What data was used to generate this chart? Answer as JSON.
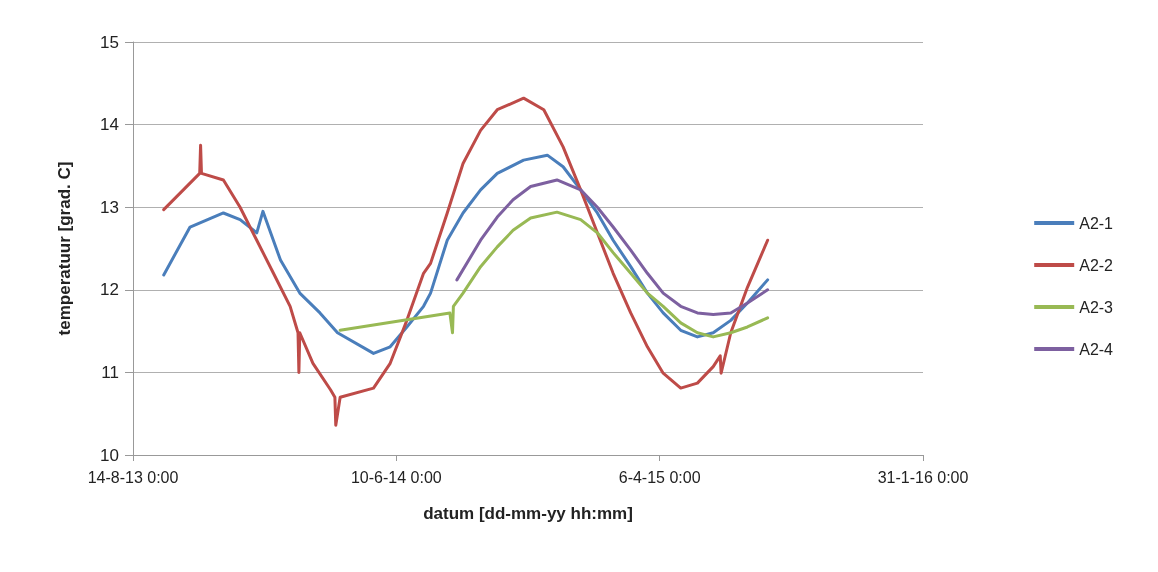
{
  "chart_data": {
    "type": "line",
    "xlabel": "datum [dd-mm-yy hh:mm]",
    "ylabel": "temperatuur [grad. C]",
    "xlim": [
      "2013-08-14",
      "2016-01-31"
    ],
    "xticks": [
      {
        "value": "2013-08-14",
        "label": "14-8-13 0:00"
      },
      {
        "value": "2014-06-10",
        "label": "10-6-14 0:00"
      },
      {
        "value": "2015-04-06",
        "label": "6-4-15 0:00"
      },
      {
        "value": "2016-01-31",
        "label": "31-1-16 0:00"
      }
    ],
    "ylim": [
      10,
      15
    ],
    "yticks": [
      10,
      11,
      12,
      13,
      14,
      15
    ],
    "grid": "y",
    "legend": "right",
    "marker": "none",
    "line_style": "solid",
    "series": [
      {
        "name": "A2-1",
        "color": "#4a7ebb",
        "x": [
          "2013-09-18",
          "2013-10-18",
          "2013-11-25",
          "2013-12-14",
          "2014-01-02",
          "2014-01-09",
          "2014-01-29",
          "2014-02-20",
          "2014-03-15",
          "2014-04-04",
          "2014-05-15",
          "2014-06-03",
          "2014-06-22",
          "2014-07-11",
          "2014-07-19",
          "2014-08-07",
          "2014-08-25",
          "2014-09-14",
          "2014-10-03",
          "2014-11-02",
          "2014-11-29",
          "2014-12-17",
          "2015-01-06",
          "2015-01-25",
          "2015-02-12",
          "2015-03-04",
          "2015-03-23",
          "2015-04-10",
          "2015-04-30",
          "2015-05-19",
          "2015-06-06",
          "2015-06-26",
          "2015-07-15",
          "2015-08-07"
        ],
        "values": [
          12.18,
          12.76,
          12.93,
          12.85,
          12.69,
          12.95,
          12.36,
          11.96,
          11.72,
          11.48,
          11.23,
          11.31,
          11.55,
          11.8,
          11.96,
          12.6,
          12.93,
          13.21,
          13.41,
          13.57,
          13.63,
          13.49,
          13.21,
          12.93,
          12.6,
          12.28,
          11.96,
          11.72,
          11.51,
          11.43,
          11.48,
          11.63,
          11.84,
          12.12
        ]
      },
      {
        "name": "A2-2",
        "color": "#be4b48",
        "x": [
          "2013-09-18",
          "2013-10-29",
          "2013-10-30",
          "2013-10-31",
          "2013-11-25",
          "2013-12-14",
          "2014-01-02",
          "2014-01-21",
          "2014-02-09",
          "2014-02-18",
          "2014-02-19",
          "2014-02-20",
          "2014-03-07",
          "2014-03-27",
          "2014-04-01",
          "2014-04-02",
          "2014-04-07",
          "2014-05-15",
          "2014-06-03",
          "2014-06-22",
          "2014-07-11",
          "2014-07-19",
          "2014-08-07",
          "2014-08-25",
          "2014-09-14",
          "2014-10-03",
          "2014-11-02",
          "2014-11-25",
          "2014-12-17",
          "2015-01-06",
          "2015-01-25",
          "2015-02-12",
          "2015-03-04",
          "2015-03-23",
          "2015-04-10",
          "2015-04-30",
          "2015-05-19",
          "2015-06-06",
          "2015-06-14",
          "2015-06-15",
          "2015-06-26",
          "2015-07-15",
          "2015-08-07"
        ],
        "values": [
          12.97,
          13.41,
          13.75,
          13.41,
          13.33,
          13.0,
          12.6,
          12.2,
          11.8,
          11.48,
          11.0,
          11.48,
          11.11,
          10.79,
          10.7,
          10.36,
          10.7,
          10.81,
          11.11,
          11.63,
          12.2,
          12.32,
          12.93,
          13.53,
          13.93,
          14.18,
          14.32,
          14.18,
          13.73,
          13.21,
          12.69,
          12.2,
          11.72,
          11.31,
          10.99,
          10.81,
          10.87,
          11.07,
          11.2,
          10.99,
          11.48,
          12.03,
          12.6
        ]
      },
      {
        "name": "A2-3",
        "color": "#98b954",
        "x": [
          "2014-04-07",
          "2014-08-10",
          "2014-08-13",
          "2014-08-14",
          "2014-08-25",
          "2014-09-14",
          "2014-10-03",
          "2014-10-21",
          "2014-11-10",
          "2014-12-10",
          "2015-01-06",
          "2015-01-25",
          "2015-02-12",
          "2015-03-04",
          "2015-03-23",
          "2015-04-10",
          "2015-04-30",
          "2015-05-19",
          "2015-06-06",
          "2015-06-26",
          "2015-07-15",
          "2015-08-07"
        ],
        "values": [
          11.51,
          11.72,
          11.48,
          11.8,
          11.96,
          12.28,
          12.52,
          12.72,
          12.87,
          12.94,
          12.85,
          12.69,
          12.45,
          12.2,
          11.96,
          11.8,
          11.6,
          11.48,
          11.43,
          11.48,
          11.55,
          11.66
        ]
      },
      {
        "name": "A2-4",
        "color": "#7d60a0",
        "x": [
          "2014-08-18",
          "2014-09-14",
          "2014-10-03",
          "2014-10-21",
          "2014-11-10",
          "2014-12-10",
          "2015-01-06",
          "2015-01-25",
          "2015-02-12",
          "2015-03-04",
          "2015-03-23",
          "2015-04-10",
          "2015-04-30",
          "2015-05-19",
          "2015-06-06",
          "2015-06-26",
          "2015-07-15",
          "2015-08-07"
        ],
        "values": [
          12.12,
          12.6,
          12.88,
          13.09,
          13.25,
          13.33,
          13.21,
          13.0,
          12.76,
          12.48,
          12.2,
          11.96,
          11.8,
          11.72,
          11.7,
          11.72,
          11.84,
          12.0
        ]
      }
    ]
  }
}
